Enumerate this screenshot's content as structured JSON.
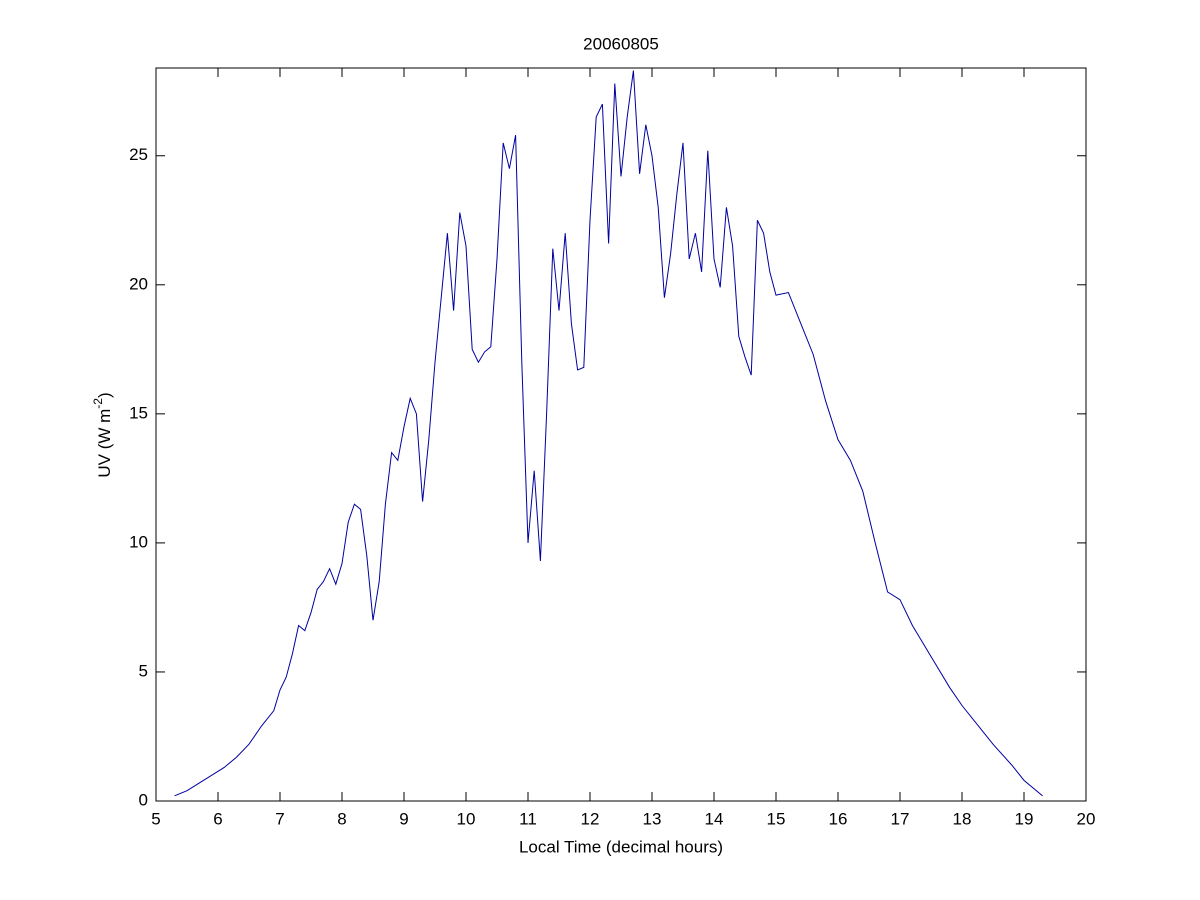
{
  "chart_data": {
    "type": "line",
    "title": "20060805",
    "xlabel": "Local Time (decimal hours)",
    "ylabel": {
      "text": "UV (W m",
      "superscript": "-2",
      "end": ")"
    },
    "x": [
      5.3,
      5.5,
      5.7,
      5.9,
      6.1,
      6.3,
      6.5,
      6.7,
      6.9,
      7.0,
      7.1,
      7.2,
      7.3,
      7.4,
      7.5,
      7.6,
      7.7,
      7.8,
      7.9,
      8.0,
      8.1,
      8.2,
      8.3,
      8.4,
      8.5,
      8.6,
      8.7,
      8.8,
      8.9,
      9.0,
      9.1,
      9.2,
      9.3,
      9.4,
      9.5,
      9.6,
      9.7,
      9.8,
      9.9,
      10.0,
      10.1,
      10.2,
      10.3,
      10.4,
      10.5,
      10.6,
      10.7,
      10.8,
      10.9,
      11.0,
      11.1,
      11.2,
      11.3,
      11.4,
      11.5,
      11.6,
      11.7,
      11.8,
      11.9,
      12.0,
      12.1,
      12.2,
      12.3,
      12.4,
      12.5,
      12.6,
      12.7,
      12.8,
      12.9,
      13.0,
      13.1,
      13.2,
      13.3,
      13.4,
      13.5,
      13.6,
      13.7,
      13.8,
      13.9,
      14.0,
      14.1,
      14.2,
      14.3,
      14.4,
      14.5,
      14.6,
      14.7,
      14.8,
      14.9,
      15.0,
      15.2,
      15.4,
      15.6,
      15.8,
      16.0,
      16.2,
      16.4,
      16.6,
      16.8,
      17.0,
      17.2,
      17.5,
      17.8,
      18.0,
      18.3,
      18.5,
      18.8,
      19.0,
      19.3
    ],
    "series": [
      {
        "name": "UV",
        "color": "#0000a0",
        "values": [
          0.2,
          0.4,
          0.7,
          1.0,
          1.3,
          1.7,
          2.2,
          2.9,
          3.5,
          4.3,
          4.8,
          5.7,
          6.8,
          6.6,
          7.3,
          8.2,
          8.5,
          9.0,
          8.4,
          9.2,
          10.8,
          11.5,
          11.3,
          9.5,
          7.0,
          8.5,
          11.5,
          13.5,
          13.2,
          14.5,
          15.6,
          15.0,
          11.6,
          14.0,
          17.0,
          19.5,
          22.0,
          19.0,
          22.8,
          21.5,
          17.5,
          17.0,
          17.4,
          17.6,
          21.0,
          25.5,
          24.5,
          25.8,
          17.0,
          10.0,
          12.8,
          9.3,
          15.0,
          21.4,
          19.0,
          22.0,
          18.5,
          16.7,
          16.8,
          22.5,
          26.5,
          27.0,
          21.6,
          27.8,
          24.2,
          26.5,
          28.3,
          24.3,
          26.2,
          25.0,
          23.0,
          19.5,
          21.2,
          23.5,
          25.5,
          21.0,
          22.0,
          20.5,
          25.2,
          21.0,
          19.9,
          23.0,
          21.5,
          18.0,
          17.2,
          16.5,
          22.5,
          22.0,
          20.5,
          19.6,
          19.7,
          18.5,
          17.3,
          15.5,
          14.0,
          13.2,
          12.0,
          10.0,
          8.1,
          7.8,
          6.8,
          5.6,
          4.4,
          3.7,
          2.8,
          2.2,
          1.4,
          0.8,
          0.2
        ]
      }
    ],
    "xlim": [
      5,
      20
    ],
    "xticks": [
      5,
      6,
      7,
      8,
      9,
      10,
      11,
      12,
      13,
      14,
      15,
      16,
      17,
      18,
      19,
      20
    ],
    "ylim": [
      0,
      28.4
    ],
    "yticks": [
      0,
      5,
      10,
      15,
      20,
      25
    ],
    "grid": false
  }
}
